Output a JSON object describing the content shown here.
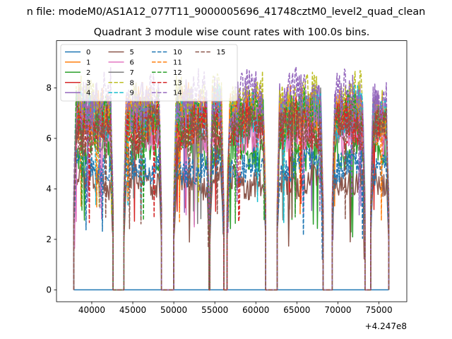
{
  "figure": {
    "suptitle": "n file: modeM0/AS1A12_077T11_9000005696_41748cztM0_level2_quad_clean",
    "title": "Quadrant 3 module wise count rates with 100.0s bins.",
    "offset_label": "+4.247e8"
  },
  "chart_data": {
    "type": "line",
    "title": "Quadrant 3 module wise count rates with 100.0s bins.",
    "xlabel": "",
    "ylabel": "",
    "x_offset": 424700000,
    "xlim": [
      35700,
      78400
    ],
    "ylim": [
      -0.47,
      9.87
    ],
    "xticks": [
      40000,
      45000,
      50000,
      55000,
      60000,
      65000,
      70000,
      75000
    ],
    "xtick_labels": [
      "40000",
      "45000",
      "50000",
      "55000",
      "60000",
      "65000",
      "70000",
      "75000"
    ],
    "yticks": [
      0,
      2,
      4,
      6,
      8
    ],
    "ytick_labels": [
      "0",
      "2",
      "4",
      "6",
      "8"
    ],
    "grid": false,
    "legend_position": "top-left",
    "legend_columns": 4,
    "observation_windows": [
      {
        "start": 37800,
        "end": 42600
      },
      {
        "start": 43900,
        "end": 48500
      },
      {
        "start": 50000,
        "end": 54300
      },
      {
        "start": 54400,
        "end": 56100
      },
      {
        "start": 56500,
        "end": 61200
      },
      {
        "start": 62600,
        "end": 68200
      },
      {
        "start": 69300,
        "end": 73300
      },
      {
        "start": 74000,
        "end": 76200
      }
    ],
    "series": [
      {
        "name": "0",
        "color": "#1f77b4",
        "style": "solid",
        "level": 0.0,
        "x_range": [
          37800,
          76200
        ]
      },
      {
        "name": "1",
        "color": "#ff7f0e",
        "style": "solid",
        "level": 7.0
      },
      {
        "name": "2",
        "color": "#2ca02c",
        "style": "solid",
        "level": 5.6
      },
      {
        "name": "3",
        "color": "#d62728",
        "style": "solid",
        "level": 6.6
      },
      {
        "name": "4",
        "color": "#9467bd",
        "style": "solid",
        "level": 7.1
      },
      {
        "name": "5",
        "color": "#8c564b",
        "style": "solid",
        "level": 4.3
      },
      {
        "name": "6",
        "color": "#e377c2",
        "style": "solid",
        "level": 6.4
      },
      {
        "name": "7",
        "color": "#7f7f7f",
        "style": "solid",
        "level": 7.0
      },
      {
        "name": "8",
        "color": "#bcbd22",
        "style": "dashed",
        "level": 7.4
      },
      {
        "name": "9",
        "color": "#17becf",
        "style": "dashed",
        "level": 6.9
      },
      {
        "name": "10",
        "color": "#1f77b4",
        "style": "dashed",
        "level": 4.9
      },
      {
        "name": "11",
        "color": "#ff7f0e",
        "style": "dashed",
        "level": 6.9
      },
      {
        "name": "12",
        "color": "#2ca02c",
        "style": "dashed",
        "level": 6.8
      },
      {
        "name": "13",
        "color": "#d62728",
        "style": "dashed",
        "level": 6.5
      },
      {
        "name": "14",
        "color": "#9467bd",
        "style": "dashed",
        "level": 7.5
      },
      {
        "name": "15",
        "color": "#8c564b",
        "style": "dashed",
        "level": 6.3
      }
    ]
  }
}
